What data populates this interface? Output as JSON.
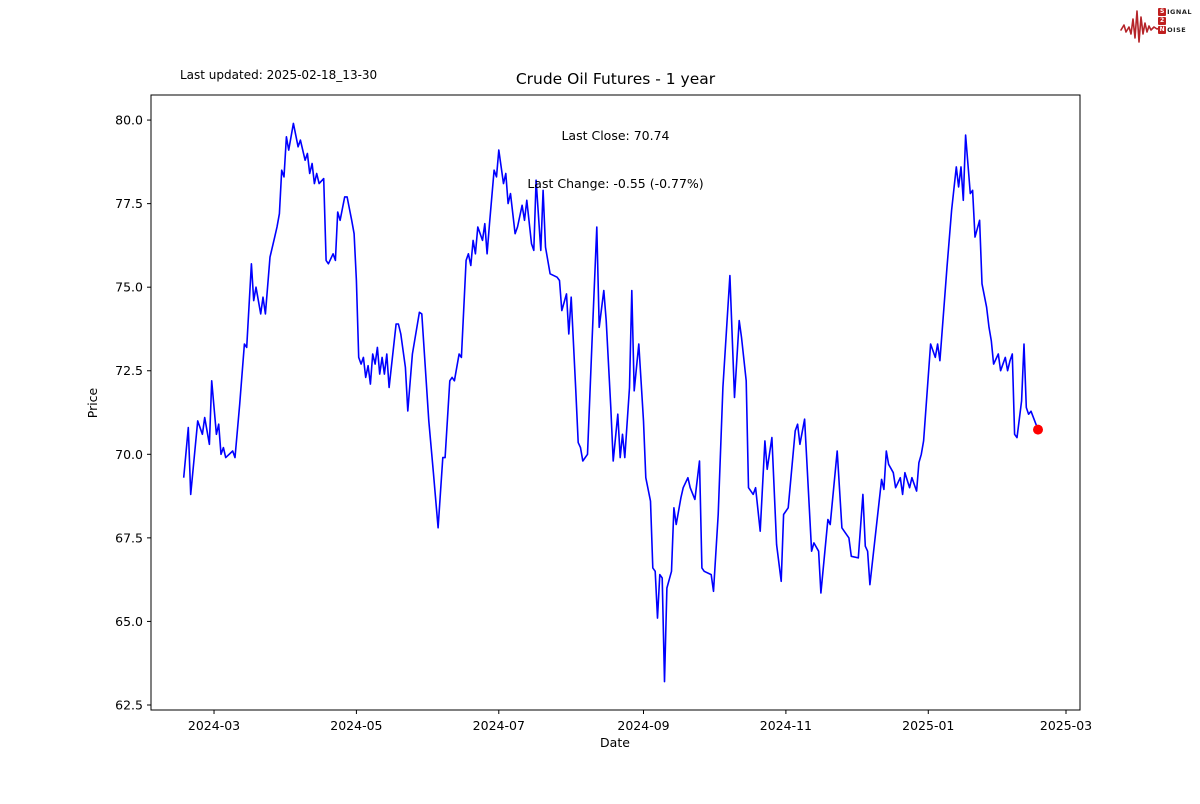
{
  "header": {
    "last_updated": "Last updated: 2025-02-18_13-30"
  },
  "logo": {
    "accent": "#c01f1f",
    "lines": [
      {
        "initial": "S",
        "rest": "IGNAL"
      },
      {
        "initial": "2",
        "rest": ""
      },
      {
        "initial": "N",
        "rest": "OISE"
      }
    ]
  },
  "chart_data": {
    "type": "line",
    "title": "Crude Oil Futures - 1 year",
    "subtitle_lines": [
      "Last Close: 70.74",
      "Last Change: -0.55 (-0.77%)"
    ],
    "xlabel": "Date",
    "ylabel": "Price",
    "last_close": 70.74,
    "last_change": -0.55,
    "last_change_pct": "-0.77%",
    "line_color": "#0000ff",
    "last_point_color": "#ff0000",
    "grid": false,
    "legend": "none",
    "x_tick_labels": [
      "2024-03",
      "2024-05",
      "2024-07",
      "2024-09",
      "2024-11",
      "2025-01",
      "2025-03"
    ],
    "y_ticks": [
      62.5,
      65.0,
      67.5,
      70.0,
      72.5,
      75.0,
      77.5,
      80.0
    ],
    "x_domain": [
      "2024-02-03",
      "2025-03-07"
    ],
    "y_domain": [
      62.35,
      80.75
    ],
    "series": [
      {
        "name": "Crude Oil Futures price",
        "points": [
          [
            "2024-02-17",
            69.3
          ],
          [
            "2024-02-19",
            70.8
          ],
          [
            "2024-02-20",
            68.8
          ],
          [
            "2024-02-23",
            71.0
          ],
          [
            "2024-02-25",
            70.6
          ],
          [
            "2024-02-26",
            71.1
          ],
          [
            "2024-02-28",
            70.3
          ],
          [
            "2024-02-29",
            72.2
          ],
          [
            "2024-03-02",
            70.6
          ],
          [
            "2024-03-03",
            70.9
          ],
          [
            "2024-03-04",
            70.0
          ],
          [
            "2024-03-05",
            70.2
          ],
          [
            "2024-03-06",
            69.9
          ],
          [
            "2024-03-09",
            70.1
          ],
          [
            "2024-03-10",
            69.9
          ],
          [
            "2024-03-12",
            71.5
          ],
          [
            "2024-03-14",
            73.3
          ],
          [
            "2024-03-15",
            73.2
          ],
          [
            "2024-03-17",
            75.7
          ],
          [
            "2024-03-18",
            74.6
          ],
          [
            "2024-03-19",
            75.0
          ],
          [
            "2024-03-21",
            74.2
          ],
          [
            "2024-03-22",
            74.7
          ],
          [
            "2024-03-23",
            74.2
          ],
          [
            "2024-03-25",
            75.9
          ],
          [
            "2024-03-27",
            76.5
          ],
          [
            "2024-03-28",
            76.8
          ],
          [
            "2024-03-29",
            77.2
          ],
          [
            "2024-03-30",
            78.5
          ],
          [
            "2024-03-31",
            78.3
          ],
          [
            "2024-04-01",
            79.5
          ],
          [
            "2024-04-02",
            79.1
          ],
          [
            "2024-04-04",
            79.9
          ],
          [
            "2024-04-06",
            79.2
          ],
          [
            "2024-04-07",
            79.4
          ],
          [
            "2024-04-09",
            78.8
          ],
          [
            "2024-04-10",
            79.0
          ],
          [
            "2024-04-11",
            78.4
          ],
          [
            "2024-04-12",
            78.7
          ],
          [
            "2024-04-13",
            78.1
          ],
          [
            "2024-04-14",
            78.4
          ],
          [
            "2024-04-15",
            78.1
          ],
          [
            "2024-04-17",
            78.25
          ],
          [
            "2024-04-18",
            75.8
          ],
          [
            "2024-04-19",
            75.7
          ],
          [
            "2024-04-21",
            76.0
          ],
          [
            "2024-04-22",
            75.8
          ],
          [
            "2024-04-23",
            77.25
          ],
          [
            "2024-04-24",
            77.0
          ],
          [
            "2024-04-26",
            77.7
          ],
          [
            "2024-04-27",
            77.7
          ],
          [
            "2024-04-28",
            77.35
          ],
          [
            "2024-04-29",
            77.0
          ],
          [
            "2024-04-30",
            76.6
          ],
          [
            "2024-05-01",
            75.2
          ],
          [
            "2024-05-02",
            72.9
          ],
          [
            "2024-05-03",
            72.7
          ],
          [
            "2024-05-04",
            72.9
          ],
          [
            "2024-05-05",
            72.3
          ],
          [
            "2024-05-06",
            72.65
          ],
          [
            "2024-05-07",
            72.1
          ],
          [
            "2024-05-08",
            73.0
          ],
          [
            "2024-05-09",
            72.7
          ],
          [
            "2024-05-10",
            73.2
          ],
          [
            "2024-05-11",
            72.4
          ],
          [
            "2024-05-12",
            72.9
          ],
          [
            "2024-05-13",
            72.4
          ],
          [
            "2024-05-14",
            73.0
          ],
          [
            "2024-05-15",
            72.0
          ],
          [
            "2024-05-18",
            73.9
          ],
          [
            "2024-05-19",
            73.9
          ],
          [
            "2024-05-20",
            73.6
          ],
          [
            "2024-05-22",
            72.6
          ],
          [
            "2024-05-23",
            71.3
          ],
          [
            "2024-05-25",
            73.0
          ],
          [
            "2024-05-28",
            74.25
          ],
          [
            "2024-05-29",
            74.2
          ],
          [
            "2024-06-01",
            71.0
          ],
          [
            "2024-06-03",
            69.45
          ],
          [
            "2024-06-05",
            67.8
          ],
          [
            "2024-06-07",
            69.9
          ],
          [
            "2024-06-08",
            69.9
          ],
          [
            "2024-06-10",
            72.2
          ],
          [
            "2024-06-11",
            72.3
          ],
          [
            "2024-06-12",
            72.2
          ],
          [
            "2024-06-14",
            73.0
          ],
          [
            "2024-06-15",
            72.9
          ],
          [
            "2024-06-17",
            75.8
          ],
          [
            "2024-06-18",
            76.0
          ],
          [
            "2024-06-19",
            75.65
          ],
          [
            "2024-06-20",
            76.4
          ],
          [
            "2024-06-21",
            76.0
          ],
          [
            "2024-06-22",
            76.8
          ],
          [
            "2024-06-24",
            76.4
          ],
          [
            "2024-06-25",
            76.9
          ],
          [
            "2024-06-26",
            76.0
          ],
          [
            "2024-06-27",
            76.9
          ],
          [
            "2024-06-29",
            78.5
          ],
          [
            "2024-06-30",
            78.3
          ],
          [
            "2024-07-01",
            79.1
          ],
          [
            "2024-07-03",
            78.1
          ],
          [
            "2024-07-04",
            78.4
          ],
          [
            "2024-07-05",
            77.5
          ],
          [
            "2024-07-06",
            77.8
          ],
          [
            "2024-07-08",
            76.6
          ],
          [
            "2024-07-09",
            76.8
          ],
          [
            "2024-07-11",
            77.45
          ],
          [
            "2024-07-12",
            77.0
          ],
          [
            "2024-07-13",
            77.6
          ],
          [
            "2024-07-15",
            76.3
          ],
          [
            "2024-07-16",
            76.1
          ],
          [
            "2024-07-17",
            78.2
          ],
          [
            "2024-07-19",
            76.1
          ],
          [
            "2024-07-20",
            77.9
          ],
          [
            "2024-07-21",
            76.2
          ],
          [
            "2024-07-23",
            75.4
          ],
          [
            "2024-07-26",
            75.3
          ],
          [
            "2024-07-27",
            75.2
          ],
          [
            "2024-07-28",
            74.3
          ],
          [
            "2024-07-30",
            74.8
          ],
          [
            "2024-07-31",
            73.6
          ],
          [
            "2024-08-01",
            74.7
          ],
          [
            "2024-08-03",
            71.9
          ],
          [
            "2024-08-04",
            70.35
          ],
          [
            "2024-08-05",
            70.2
          ],
          [
            "2024-08-06",
            69.8
          ],
          [
            "2024-08-08",
            70.0
          ],
          [
            "2024-08-10",
            73.5
          ],
          [
            "2024-08-12",
            76.8
          ],
          [
            "2024-08-13",
            73.8
          ],
          [
            "2024-08-15",
            74.9
          ],
          [
            "2024-08-16",
            74.0
          ],
          [
            "2024-08-18",
            71.4
          ],
          [
            "2024-08-19",
            69.8
          ],
          [
            "2024-08-21",
            71.2
          ],
          [
            "2024-08-22",
            69.9
          ],
          [
            "2024-08-23",
            70.6
          ],
          [
            "2024-08-24",
            69.9
          ],
          [
            "2024-08-26",
            72.0
          ],
          [
            "2024-08-27",
            74.9
          ],
          [
            "2024-08-28",
            71.9
          ],
          [
            "2024-08-30",
            73.3
          ],
          [
            "2024-09-01",
            71.0
          ],
          [
            "2024-09-02",
            69.3
          ],
          [
            "2024-09-04",
            68.6
          ],
          [
            "2024-09-05",
            66.6
          ],
          [
            "2024-09-06",
            66.5
          ],
          [
            "2024-09-07",
            65.1
          ],
          [
            "2024-09-08",
            66.4
          ],
          [
            "2024-09-09",
            66.3
          ],
          [
            "2024-09-10",
            63.2
          ],
          [
            "2024-09-11",
            66.0
          ],
          [
            "2024-09-13",
            66.5
          ],
          [
            "2024-09-14",
            68.4
          ],
          [
            "2024-09-15",
            67.9
          ],
          [
            "2024-09-17",
            68.7
          ],
          [
            "2024-09-18",
            69.0
          ],
          [
            "2024-09-20",
            69.3
          ],
          [
            "2024-09-21",
            69.0
          ],
          [
            "2024-09-23",
            68.65
          ],
          [
            "2024-09-25",
            69.8
          ],
          [
            "2024-09-26",
            66.6
          ],
          [
            "2024-09-27",
            66.5
          ],
          [
            "2024-09-30",
            66.4
          ],
          [
            "2024-10-01",
            65.9
          ],
          [
            "2024-10-03",
            68.2
          ],
          [
            "2024-10-05",
            72.0
          ],
          [
            "2024-10-08",
            75.35
          ],
          [
            "2024-10-10",
            71.7
          ],
          [
            "2024-10-12",
            74.0
          ],
          [
            "2024-10-13",
            73.5
          ],
          [
            "2024-10-15",
            72.2
          ],
          [
            "2024-10-16",
            69.0
          ],
          [
            "2024-10-18",
            68.8
          ],
          [
            "2024-10-19",
            69.0
          ],
          [
            "2024-10-21",
            67.7
          ],
          [
            "2024-10-23",
            70.4
          ],
          [
            "2024-10-24",
            69.55
          ],
          [
            "2024-10-26",
            70.5
          ],
          [
            "2024-10-28",
            67.3
          ],
          [
            "2024-10-30",
            66.2
          ],
          [
            "2024-10-31",
            68.2
          ],
          [
            "2024-11-02",
            68.4
          ],
          [
            "2024-11-05",
            70.7
          ],
          [
            "2024-11-06",
            70.9
          ],
          [
            "2024-11-07",
            70.3
          ],
          [
            "2024-11-09",
            71.05
          ],
          [
            "2024-11-12",
            67.1
          ],
          [
            "2024-11-13",
            67.35
          ],
          [
            "2024-11-15",
            67.1
          ],
          [
            "2024-11-16",
            65.85
          ],
          [
            "2024-11-19",
            68.05
          ],
          [
            "2024-11-20",
            67.9
          ],
          [
            "2024-11-23",
            70.1
          ],
          [
            "2024-11-25",
            67.8
          ],
          [
            "2024-11-26",
            67.7
          ],
          [
            "2024-11-28",
            67.5
          ],
          [
            "2024-11-29",
            66.95
          ],
          [
            "2024-12-02",
            66.9
          ],
          [
            "2024-12-04",
            68.8
          ],
          [
            "2024-12-05",
            67.25
          ],
          [
            "2024-12-06",
            67.1
          ],
          [
            "2024-12-07",
            66.1
          ],
          [
            "2024-12-12",
            69.25
          ],
          [
            "2024-12-13",
            68.95
          ],
          [
            "2024-12-14",
            70.1
          ],
          [
            "2024-12-15",
            69.7
          ],
          [
            "2024-12-17",
            69.45
          ],
          [
            "2024-12-18",
            69.0
          ],
          [
            "2024-12-20",
            69.3
          ],
          [
            "2024-12-21",
            68.8
          ],
          [
            "2024-12-22",
            69.45
          ],
          [
            "2024-12-24",
            69.0
          ],
          [
            "2024-12-25",
            69.3
          ],
          [
            "2024-12-27",
            68.9
          ],
          [
            "2024-12-28",
            69.75
          ],
          [
            "2024-12-29",
            70.0
          ],
          [
            "2024-12-30",
            70.4
          ],
          [
            "2025-01-02",
            73.3
          ],
          [
            "2025-01-04",
            72.9
          ],
          [
            "2025-01-05",
            73.3
          ],
          [
            "2025-01-06",
            72.8
          ],
          [
            "2025-01-09",
            75.6
          ],
          [
            "2025-01-11",
            77.3
          ],
          [
            "2025-01-13",
            78.6
          ],
          [
            "2025-01-14",
            78.0
          ],
          [
            "2025-01-15",
            78.6
          ],
          [
            "2025-01-16",
            77.6
          ],
          [
            "2025-01-17",
            79.55
          ],
          [
            "2025-01-19",
            77.8
          ],
          [
            "2025-01-20",
            77.9
          ],
          [
            "2025-01-21",
            76.5
          ],
          [
            "2025-01-23",
            77.0
          ],
          [
            "2025-01-24",
            75.1
          ],
          [
            "2025-01-26",
            74.4
          ],
          [
            "2025-01-27",
            73.8
          ],
          [
            "2025-01-28",
            73.4
          ],
          [
            "2025-01-29",
            72.7
          ],
          [
            "2025-01-31",
            73.0
          ],
          [
            "2025-02-01",
            72.5
          ],
          [
            "2025-02-03",
            72.9
          ],
          [
            "2025-02-04",
            72.5
          ],
          [
            "2025-02-05",
            72.8
          ],
          [
            "2025-02-06",
            73.0
          ],
          [
            "2025-02-07",
            70.6
          ],
          [
            "2025-02-08",
            70.5
          ],
          [
            "2025-02-10",
            71.6
          ],
          [
            "2025-02-11",
            73.3
          ],
          [
            "2025-02-12",
            71.4
          ],
          [
            "2025-02-13",
            71.2
          ],
          [
            "2025-02-14",
            71.29
          ],
          [
            "2025-02-17",
            70.74
          ]
        ]
      }
    ]
  }
}
